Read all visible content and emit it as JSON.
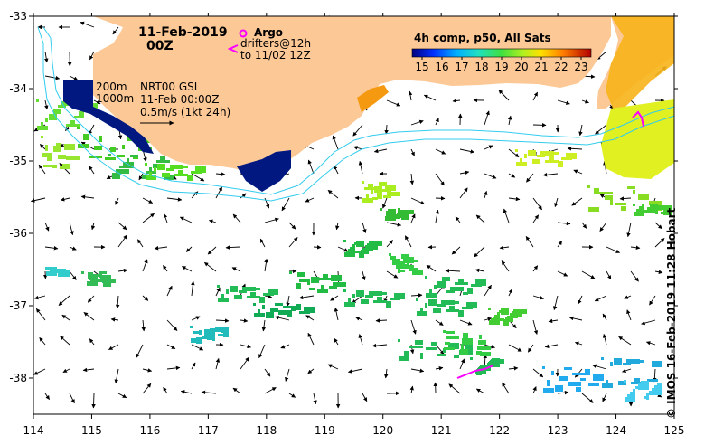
{
  "map": {
    "date_label": "11-Feb-2019",
    "time_label": "00Z",
    "legend": {
      "argo_label": "Argo",
      "drifters_label": "drifters@12h",
      "drifters_range": "to 11/02 12Z",
      "argo_color": "#ff00ff",
      "drifter_color": "#ff00ff"
    },
    "isobaths": {
      "shallow": "200m",
      "deep": "1000m",
      "color": "#33ccee"
    },
    "product": {
      "name": "NRT00 GSL",
      "datetime": "11-Feb 00:00Z",
      "scale": "0.5m/s (1kt 24h)"
    },
    "credit": "© IMOS 16-Feb-2019 11:28 Hobart",
    "land_color": "#fcc896",
    "colorbar": {
      "title": "4h comp, p50, All Sats",
      "ticks": [
        "15",
        "16",
        "17",
        "18",
        "19",
        "20",
        "21",
        "22",
        "23"
      ],
      "min": 15,
      "max": 23.5
    },
    "lon_ticks": [
      "114",
      "115",
      "116",
      "117",
      "118",
      "119",
      "120",
      "121",
      "122",
      "123",
      "124",
      "125"
    ],
    "lat_ticks": [
      "-33",
      "-34",
      "-35",
      "-36",
      "-37",
      "-38"
    ],
    "lon_range": [
      114,
      125
    ],
    "lat_range": [
      -38.5,
      -33
    ]
  }
}
